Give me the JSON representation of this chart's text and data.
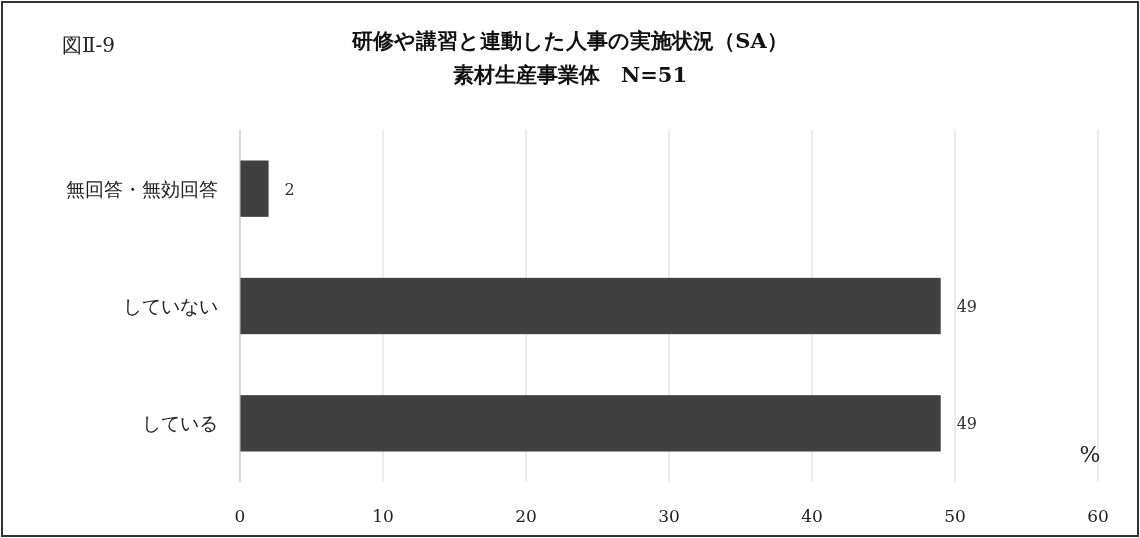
{
  "chart_data": {
    "type": "bar",
    "orientation": "horizontal",
    "title": "研修や講習と連動した人事の実施状況（SA）",
    "subtitle": "素材生産事業体　N=51",
    "categories": [
      "無回答・無効回答",
      "していない",
      "している"
    ],
    "values": [
      2,
      49,
      49
    ],
    "color": "#404040",
    "xlim": [
      0,
      60
    ],
    "xticks": [
      0,
      10,
      20,
      30,
      40,
      50,
      60
    ],
    "grid": "x",
    "data_labels": true,
    "annotations": [
      "図Ⅱ-9",
      "%"
    ]
  }
}
